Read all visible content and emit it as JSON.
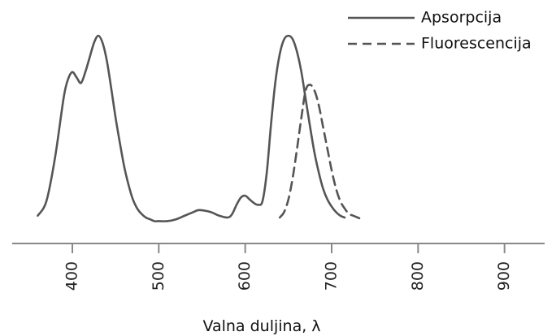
{
  "chart_data": {
    "type": "line",
    "title": "",
    "xlabel": "Valna duljina, λ",
    "ylabel": "",
    "xlim": [
      355,
      960
    ],
    "ylim": [
      0,
      1
    ],
    "xticks": [
      400,
      500,
      600,
      700,
      800,
      900
    ],
    "grid": false,
    "legend_position": "top-right",
    "series": [
      {
        "name": "Apsorpcija",
        "style": "solid",
        "color": "#555555",
        "x": [
          360,
          370,
          380,
          390,
          395,
          400,
          405,
          410,
          415,
          420,
          425,
          430,
          435,
          440,
          445,
          450,
          455,
          460,
          465,
          470,
          475,
          480,
          485,
          490,
          495,
          500,
          510,
          520,
          530,
          540,
          545,
          550,
          560,
          570,
          580,
          585,
          590,
          595,
          600,
          605,
          610,
          615,
          620,
          625,
          630,
          635,
          640,
          645,
          650,
          655,
          660,
          665,
          670,
          675,
          680,
          685,
          690,
          695,
          700,
          705,
          710,
          715
        ],
        "y": [
          0.01,
          0.09,
          0.33,
          0.66,
          0.76,
          0.8,
          0.77,
          0.74,
          0.8,
          0.88,
          0.96,
          1.0,
          0.96,
          0.86,
          0.71,
          0.55,
          0.41,
          0.28,
          0.18,
          0.1,
          0.05,
          0.02,
          0.0,
          -0.01,
          -0.02,
          -0.02,
          -0.02,
          -0.01,
          0.01,
          0.03,
          0.04,
          0.04,
          0.03,
          0.01,
          0.0,
          0.02,
          0.07,
          0.11,
          0.12,
          0.1,
          0.08,
          0.07,
          0.09,
          0.25,
          0.52,
          0.75,
          0.9,
          0.98,
          1.0,
          0.98,
          0.91,
          0.8,
          0.65,
          0.5,
          0.36,
          0.25,
          0.16,
          0.1,
          0.06,
          0.03,
          0.01,
          0.0
        ]
      },
      {
        "name": "Fluorescencija",
        "style": "dashed",
        "color": "#555555",
        "x": [
          640,
          645,
          650,
          655,
          660,
          665,
          670,
          675,
          680,
          685,
          690,
          695,
          700,
          705,
          710,
          715,
          720,
          725,
          730,
          735
        ],
        "y": [
          0.0,
          0.03,
          0.1,
          0.22,
          0.38,
          0.55,
          0.7,
          0.73,
          0.7,
          0.62,
          0.5,
          0.38,
          0.26,
          0.16,
          0.09,
          0.05,
          0.02,
          0.01,
          0.0,
          -0.01
        ]
      }
    ]
  }
}
